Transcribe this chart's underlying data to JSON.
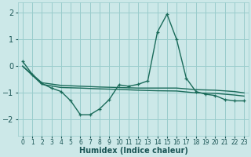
{
  "xlabel": "Humidex (Indice chaleur)",
  "background_color": "#cce8e8",
  "grid_color": "#99cccc",
  "line_color": "#1a6b5a",
  "xlim": [
    -0.5,
    23.5
  ],
  "ylim": [
    -2.6,
    2.4
  ],
  "yticks": [
    -2,
    -1,
    0,
    1,
    2
  ],
  "xticks": [
    0,
    1,
    2,
    3,
    4,
    5,
    6,
    7,
    8,
    9,
    10,
    11,
    12,
    13,
    14,
    15,
    16,
    17,
    18,
    19,
    20,
    21,
    22,
    23
  ],
  "spiky_x": [
    0,
    1,
    2,
    3,
    4,
    5,
    6,
    7,
    8,
    9,
    10,
    11,
    12,
    13,
    14,
    15,
    16,
    17,
    18,
    19,
    20,
    21,
    22,
    23
  ],
  "spiky_y": [
    0.18,
    -0.3,
    -0.65,
    -0.82,
    -0.95,
    -1.3,
    -1.82,
    -1.82,
    -1.6,
    -1.25,
    -0.7,
    -0.75,
    -0.68,
    -0.55,
    1.28,
    1.95,
    1.0,
    -0.45,
    -0.95,
    -1.05,
    -1.1,
    -1.25,
    -1.3,
    -1.3
  ],
  "flat1_x": [
    0,
    2,
    4,
    6,
    8,
    10,
    12,
    14,
    16,
    18,
    20,
    22,
    23
  ],
  "flat1_y": [
    0.0,
    -0.62,
    -0.72,
    -0.75,
    -0.78,
    -0.8,
    -0.82,
    -0.82,
    -0.82,
    -0.88,
    -0.9,
    -0.95,
    -1.0
  ],
  "flat2_x": [
    0,
    2,
    4,
    6,
    8,
    10,
    12,
    14,
    16,
    18,
    20,
    22,
    23
  ],
  "flat2_y": [
    0.0,
    -0.68,
    -0.8,
    -0.82,
    -0.85,
    -0.87,
    -0.9,
    -0.92,
    -0.93,
    -1.0,
    -1.02,
    -1.08,
    -1.12
  ]
}
